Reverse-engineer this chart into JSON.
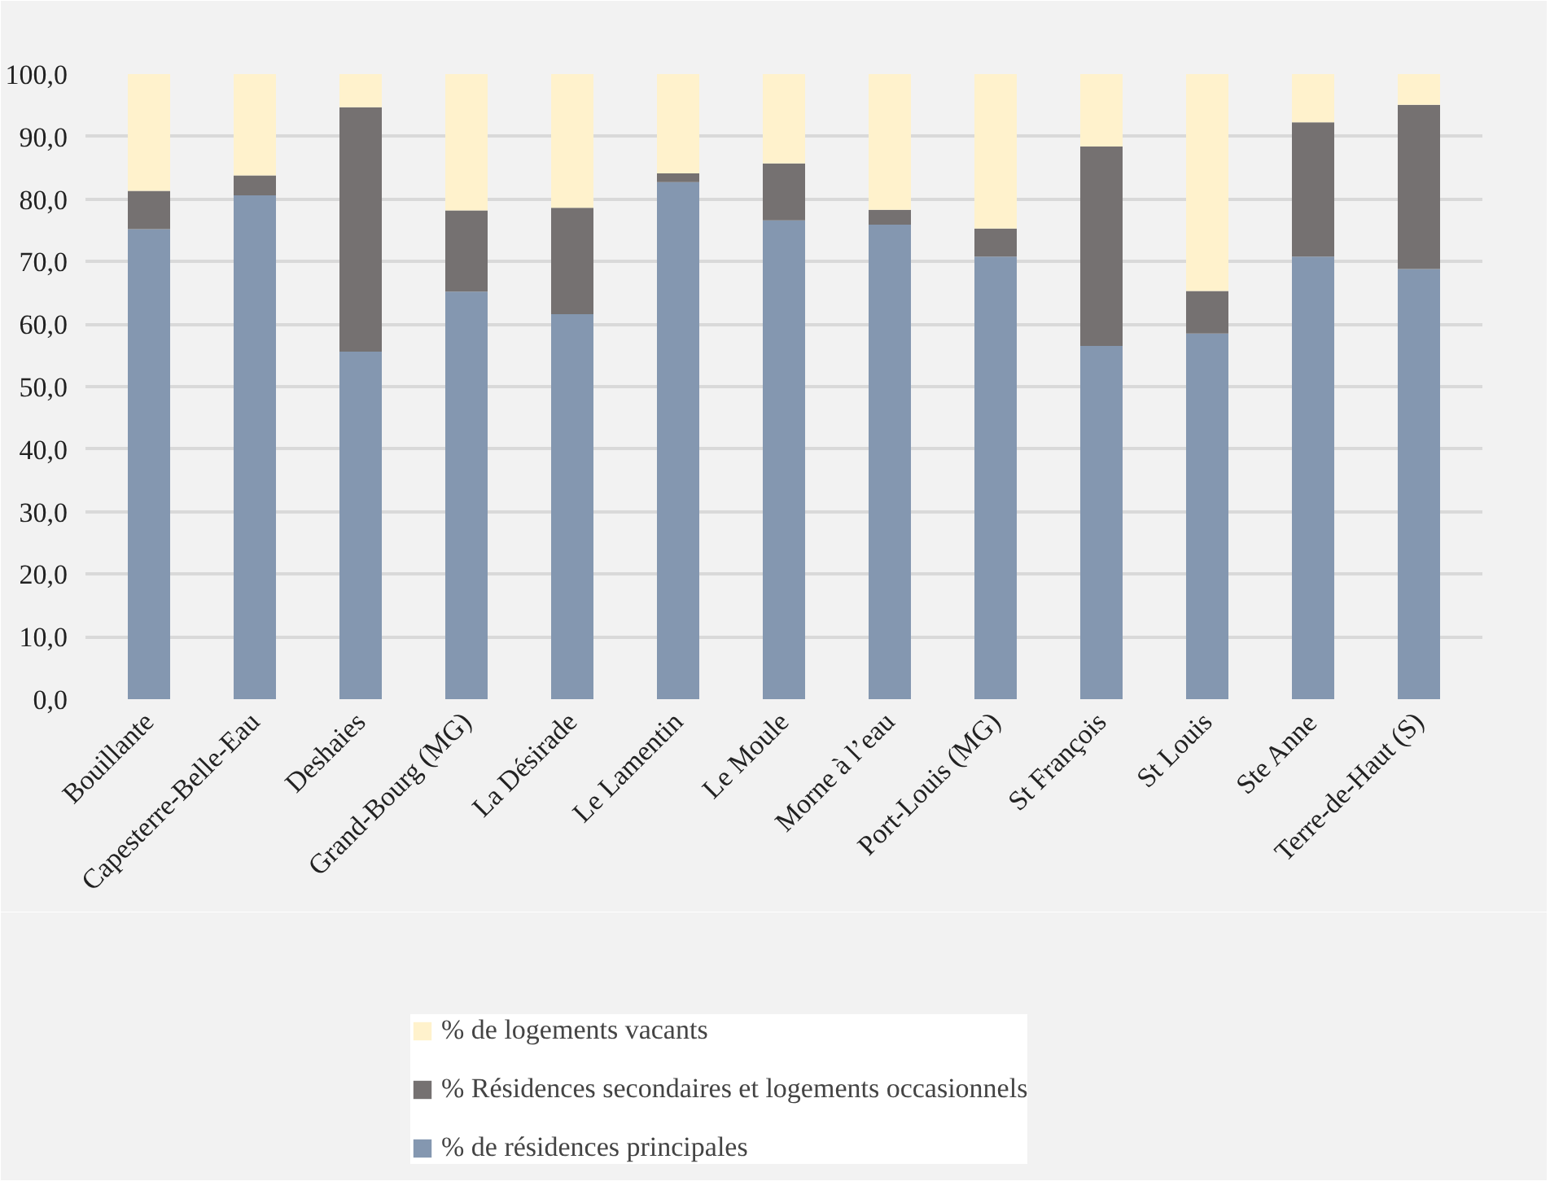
{
  "chart_data": {
    "type": "bar",
    "stacked": true,
    "categories": [
      "Bouillante",
      "Capesterre-Belle-Eau",
      "Deshaies",
      "Grand-Bourg (MG)",
      "La Désirade",
      "Le Lamentin",
      "Le Moule",
      "Morne à l’eau",
      "Port-Louis (MG)",
      "St François",
      "St Louis",
      "Ste Anne",
      "Terre-de-Haut (S)"
    ],
    "series": [
      {
        "name": "% de résidences principales",
        "color": "#8497b0",
        "values": [
          75.2,
          80.6,
          55.6,
          65.2,
          61.6,
          82.7,
          76.6,
          75.9,
          70.8,
          56.5,
          58.5,
          70.8,
          68.8
        ]
      },
      {
        "name": "% Résidences secondaires et logements occasionnels",
        "color": "#757171",
        "values": [
          6.1,
          3.2,
          39.1,
          13.0,
          17.0,
          1.4,
          9.1,
          2.4,
          4.5,
          31.9,
          6.8,
          21.5,
          26.3
        ]
      },
      {
        "name": "% de logements vacants",
        "color": "#fff2cc",
        "values": [
          18.7,
          16.2,
          5.3,
          21.8,
          21.4,
          15.9,
          14.3,
          21.7,
          24.7,
          11.6,
          34.7,
          7.7,
          4.9
        ]
      }
    ],
    "ylim": [
      0,
      100
    ],
    "yticks": [
      {
        "value": 0,
        "label": "0,0"
      },
      {
        "value": 10,
        "label": "10,0"
      },
      {
        "value": 20,
        "label": "20,0"
      },
      {
        "value": 30,
        "label": "30,0"
      },
      {
        "value": 40,
        "label": "40,0"
      },
      {
        "value": 50,
        "label": "50,0"
      },
      {
        "value": 60,
        "label": "60,0"
      },
      {
        "value": 70,
        "label": "70,0"
      },
      {
        "value": 80,
        "label": "80,0"
      },
      {
        "value": 90,
        "label": "90,0"
      },
      {
        "value": 100,
        "label": "100,0"
      }
    ],
    "grid": "y",
    "legend": "bottom"
  }
}
